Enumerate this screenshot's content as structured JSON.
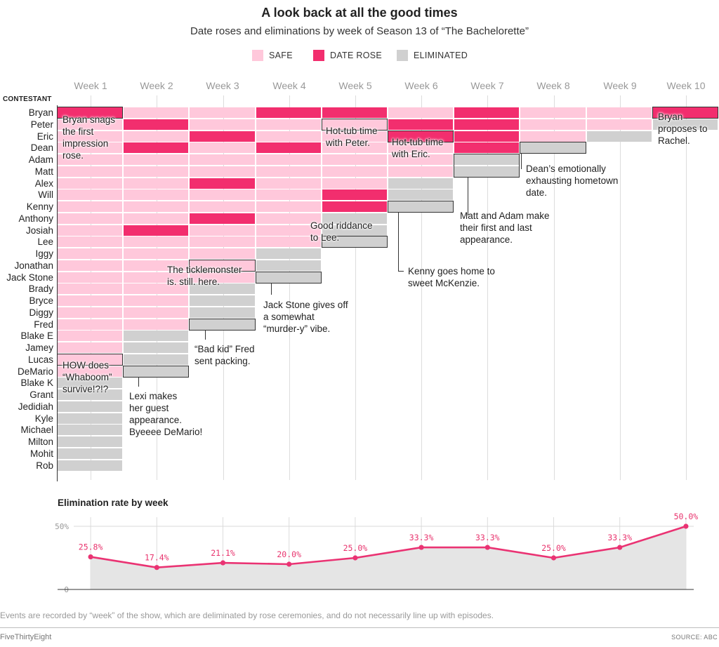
{
  "header": {
    "title": "A look back at all the good times",
    "subtitle": "Date roses and eliminations by week of Season 13 of “The Bachelorette”"
  },
  "legend": [
    {
      "label": "SAFE",
      "color": "#ffc8db"
    },
    {
      "label": "DATE ROSE",
      "color": "#f22e6e"
    },
    {
      "label": "ELIMINATED",
      "color": "#d0d0d0"
    }
  ],
  "colors": {
    "safe": "#ffc8db",
    "rose": "#f22e6e",
    "eliminated": "#d0d0d0",
    "line": "#ea3373"
  },
  "chart_data": [
    {
      "type": "heatmap",
      "title": "A look back at all the good times",
      "subtitle": "Date roses and eliminations by week of Season 13 of “The Bachelorette”",
      "row_header": "CONTESTANT",
      "weeks": [
        "Week 1",
        "Week 2",
        "Week 3",
        "Week 4",
        "Week 5",
        "Week 6",
        "Week 7",
        "Week 8",
        "Week 9",
        "Week 10"
      ],
      "status_legend": {
        "S": "SAFE",
        "R": "DATE ROSE",
        "E": "ELIMINATED"
      },
      "contestants": [
        {
          "name": "Bryan",
          "weeks": [
            "R",
            "S",
            "S",
            "R",
            "R",
            "S",
            "R",
            "S",
            "S",
            "R"
          ]
        },
        {
          "name": "Peter",
          "weeks": [
            "S",
            "R",
            "S",
            "S",
            "S",
            "R",
            "R",
            "S",
            "S",
            "E"
          ]
        },
        {
          "name": "Eric",
          "weeks": [
            "S",
            "S",
            "R",
            "S",
            "S",
            "R",
            "R",
            "S",
            "E"
          ]
        },
        {
          "name": "Dean",
          "weeks": [
            "S",
            "R",
            "S",
            "R",
            "S",
            "S",
            "R",
            "E"
          ]
        },
        {
          "name": "Adam",
          "weeks": [
            "S",
            "S",
            "S",
            "S",
            "S",
            "S",
            "E"
          ]
        },
        {
          "name": "Matt",
          "weeks": [
            "S",
            "S",
            "S",
            "S",
            "S",
            "S",
            "E"
          ]
        },
        {
          "name": "Alex",
          "weeks": [
            "S",
            "S",
            "R",
            "S",
            "S",
            "E"
          ]
        },
        {
          "name": "Will",
          "weeks": [
            "S",
            "S",
            "S",
            "S",
            "R",
            "E"
          ]
        },
        {
          "name": "Kenny",
          "weeks": [
            "S",
            "S",
            "S",
            "S",
            "R",
            "E"
          ]
        },
        {
          "name": "Anthony",
          "weeks": [
            "S",
            "S",
            "R",
            "S",
            "E"
          ]
        },
        {
          "name": "Josiah",
          "weeks": [
            "S",
            "R",
            "S",
            "S",
            "E"
          ]
        },
        {
          "name": "Lee",
          "weeks": [
            "S",
            "S",
            "S",
            "S",
            "E"
          ]
        },
        {
          "name": "Iggy",
          "weeks": [
            "S",
            "S",
            "S",
            "E"
          ]
        },
        {
          "name": "Jonathan",
          "weeks": [
            "S",
            "S",
            "S",
            "E"
          ]
        },
        {
          "name": "Jack Stone",
          "weeks": [
            "S",
            "S",
            "S",
            "E"
          ]
        },
        {
          "name": "Brady",
          "weeks": [
            "S",
            "S",
            "E"
          ]
        },
        {
          "name": "Bryce",
          "weeks": [
            "S",
            "S",
            "E"
          ]
        },
        {
          "name": "Diggy",
          "weeks": [
            "S",
            "S",
            "E"
          ]
        },
        {
          "name": "Fred",
          "weeks": [
            "S",
            "S",
            "E"
          ]
        },
        {
          "name": "Blake E",
          "weeks": [
            "S",
            "E"
          ]
        },
        {
          "name": "Jamey",
          "weeks": [
            "S",
            "E"
          ]
        },
        {
          "name": "Lucas",
          "weeks": [
            "S",
            "E"
          ]
        },
        {
          "name": "DeMario",
          "weeks": [
            "S",
            "E"
          ]
        },
        {
          "name": "Blake K",
          "weeks": [
            "E"
          ]
        },
        {
          "name": "Grant",
          "weeks": [
            "E"
          ]
        },
        {
          "name": "Jedidiah",
          "weeks": [
            "E"
          ]
        },
        {
          "name": "Kyle",
          "weeks": [
            "E"
          ]
        },
        {
          "name": "Michael",
          "weeks": [
            "E"
          ]
        },
        {
          "name": "Milton",
          "weeks": [
            "E"
          ]
        },
        {
          "name": "Mohit",
          "weeks": [
            "E"
          ]
        },
        {
          "name": "Rob",
          "weeks": [
            "E"
          ]
        }
      ],
      "annotations": [
        {
          "id": "bryan-first-rose",
          "text": "Bryan snags\nthe first\nimpression\nrose.",
          "contestant": "Bryan",
          "week": "Week 1"
        },
        {
          "id": "hot-tub-peter",
          "text": "Hot-tub time\nwith Peter.",
          "contestant": "Peter",
          "week": "Week 5"
        },
        {
          "id": "hot-tub-eric",
          "text": "Hot-tub time\nwith Eric.",
          "contestant": "Eric",
          "week": "Week 6"
        },
        {
          "id": "bryan-proposes",
          "text": "Bryan\nproposes to\nRachel.",
          "contestant": "Bryan",
          "week": "Week 10"
        },
        {
          "id": "dean-hometown",
          "text": "Dean’s emotionally\nexhausting hometown\ndate.",
          "contestant": "Dean",
          "week": "Week 8"
        },
        {
          "id": "matt-adam",
          "text": "Matt and Adam make\ntheir first and last\nappearance.",
          "contestant": "Adam, Matt",
          "week": "Week 7"
        },
        {
          "id": "kenny-home",
          "text": "Kenny goes home to\nsweet McKenzie.",
          "contestant": "Kenny",
          "week": "Week 6"
        },
        {
          "id": "lee-riddance",
          "text": "Good riddance\nto Lee.",
          "contestant": "Lee",
          "week": "Week 5"
        },
        {
          "id": "ticklemonster",
          "text": "The ticklemonster\nis. still. here.",
          "contestant": "Jonathan",
          "week": "Week 3"
        },
        {
          "id": "jack-stone",
          "text": "Jack Stone gives off\na somewhat\n“murder-y” vibe.",
          "contestant": "Jack Stone",
          "week": "Week 4"
        },
        {
          "id": "fred-packing",
          "text": "“Bad kid” Fred\nsent packing.",
          "contestant": "Fred",
          "week": "Week 3"
        },
        {
          "id": "whaboom",
          "text": "HOW does\n“Whaboom”\nsurvive!?!?",
          "contestant": "Lucas",
          "week": "Week 1"
        },
        {
          "id": "lexi-demario",
          "text": "Lexi makes\nher guest\nappearance.\nByeeee DeMario!",
          "contestant": "DeMario",
          "week": "Week 2"
        }
      ]
    },
    {
      "type": "line",
      "title": "Elimination rate by week",
      "categories": [
        "Week 1",
        "Week 2",
        "Week 3",
        "Week 4",
        "Week 5",
        "Week 6",
        "Week 7",
        "Week 8",
        "Week 9",
        "Week 10"
      ],
      "values": [
        25.8,
        17.4,
        21.1,
        20.0,
        25.0,
        33.3,
        33.3,
        25.0,
        33.3,
        50.0
      ],
      "value_labels": [
        "25.8%",
        "17.4%",
        "21.1%",
        "20.0%",
        "25.0%",
        "33.3%",
        "33.3%",
        "25.0%",
        "33.3%",
        "50.0%"
      ],
      "ylim": [
        0,
        50
      ],
      "yticks": [
        {
          "value": 0,
          "label": "0"
        },
        {
          "value": 50,
          "label": "50%"
        }
      ],
      "area_fill": true
    }
  ],
  "footnote": "Events are recorded by “week” of the show, which are deliminated by rose ceremonies, and do not necessarily line up with episodes.",
  "footer": {
    "brand": "FiveThirtyEight",
    "source": "SOURCE: ABC"
  }
}
